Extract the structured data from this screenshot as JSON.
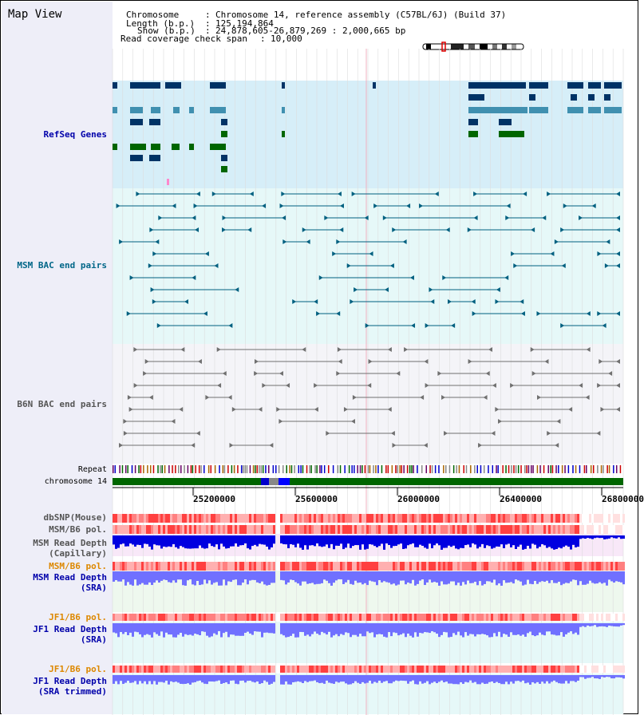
{
  "title": "Map View",
  "info": {
    "chromosome_label": "Chromosome",
    "chromosome_value": "Chromosome 14, reference assembly (C57BL/6J) (Build 37)",
    "length_label": "Length (b.p.)",
    "length_value": "125,194,864",
    "show_label": "Show (b.p.)",
    "show_value": "24,878,605-26,879,269 : 2,000,665 bp",
    "span_label": "Read coverage check span",
    "span_value": "10,000"
  },
  "tracks": {
    "refseq": "RefSeq Genes",
    "msm_bac": "MSM BAC end pairs",
    "b6n_bac": "B6N BAC end pairs",
    "repeat": "Repeat",
    "chromosome": "chromosome 14",
    "dbsnp": "dbSNP(Mouse)",
    "msm_pol1": "MSM/B6 pol.",
    "msm_depth_cap_1": "MSM Read Depth",
    "msm_depth_cap_2": "(Capillary)",
    "msm_pol2": "MSM/B6 pol.",
    "msm_depth_sra_1": "MSM Read Depth",
    "msm_depth_sra_2": "(SRA)",
    "jf1_pol1": "JF1/B6 pol.",
    "jf1_depth_sra_1": "JF1 Read Depth",
    "jf1_depth_sra_2": "(SRA)",
    "jf1_pol2": "JF1/B6 pol.",
    "jf1_depth_trim_1": "JF1 Read Depth",
    "jf1_depth_trim_2": "(SRA trimmed)"
  },
  "axis": {
    "ticks": [
      "25200000",
      "25600000",
      "26000000",
      "26400000",
      "26800000"
    ]
  },
  "colors": {
    "refseq_bg": "#d6eef8",
    "msm_bac_bg": "#e6f8f8",
    "b6n_bac_bg": "#f4f4f8",
    "gene_dark": "#003366",
    "gene_mid": "#4090b0",
    "gene_green": "#006600",
    "msm_bac_line": "#006080",
    "b6n_bac_line": "#707070",
    "chromosome_bar": "#006600",
    "depth_blue": "#0000e0",
    "depth_light_blue": "#7070ff",
    "label_blue": "#0000aa",
    "label_orange": "#dd8800",
    "label_teal": "#006688",
    "label_gray": "#555555"
  }
}
